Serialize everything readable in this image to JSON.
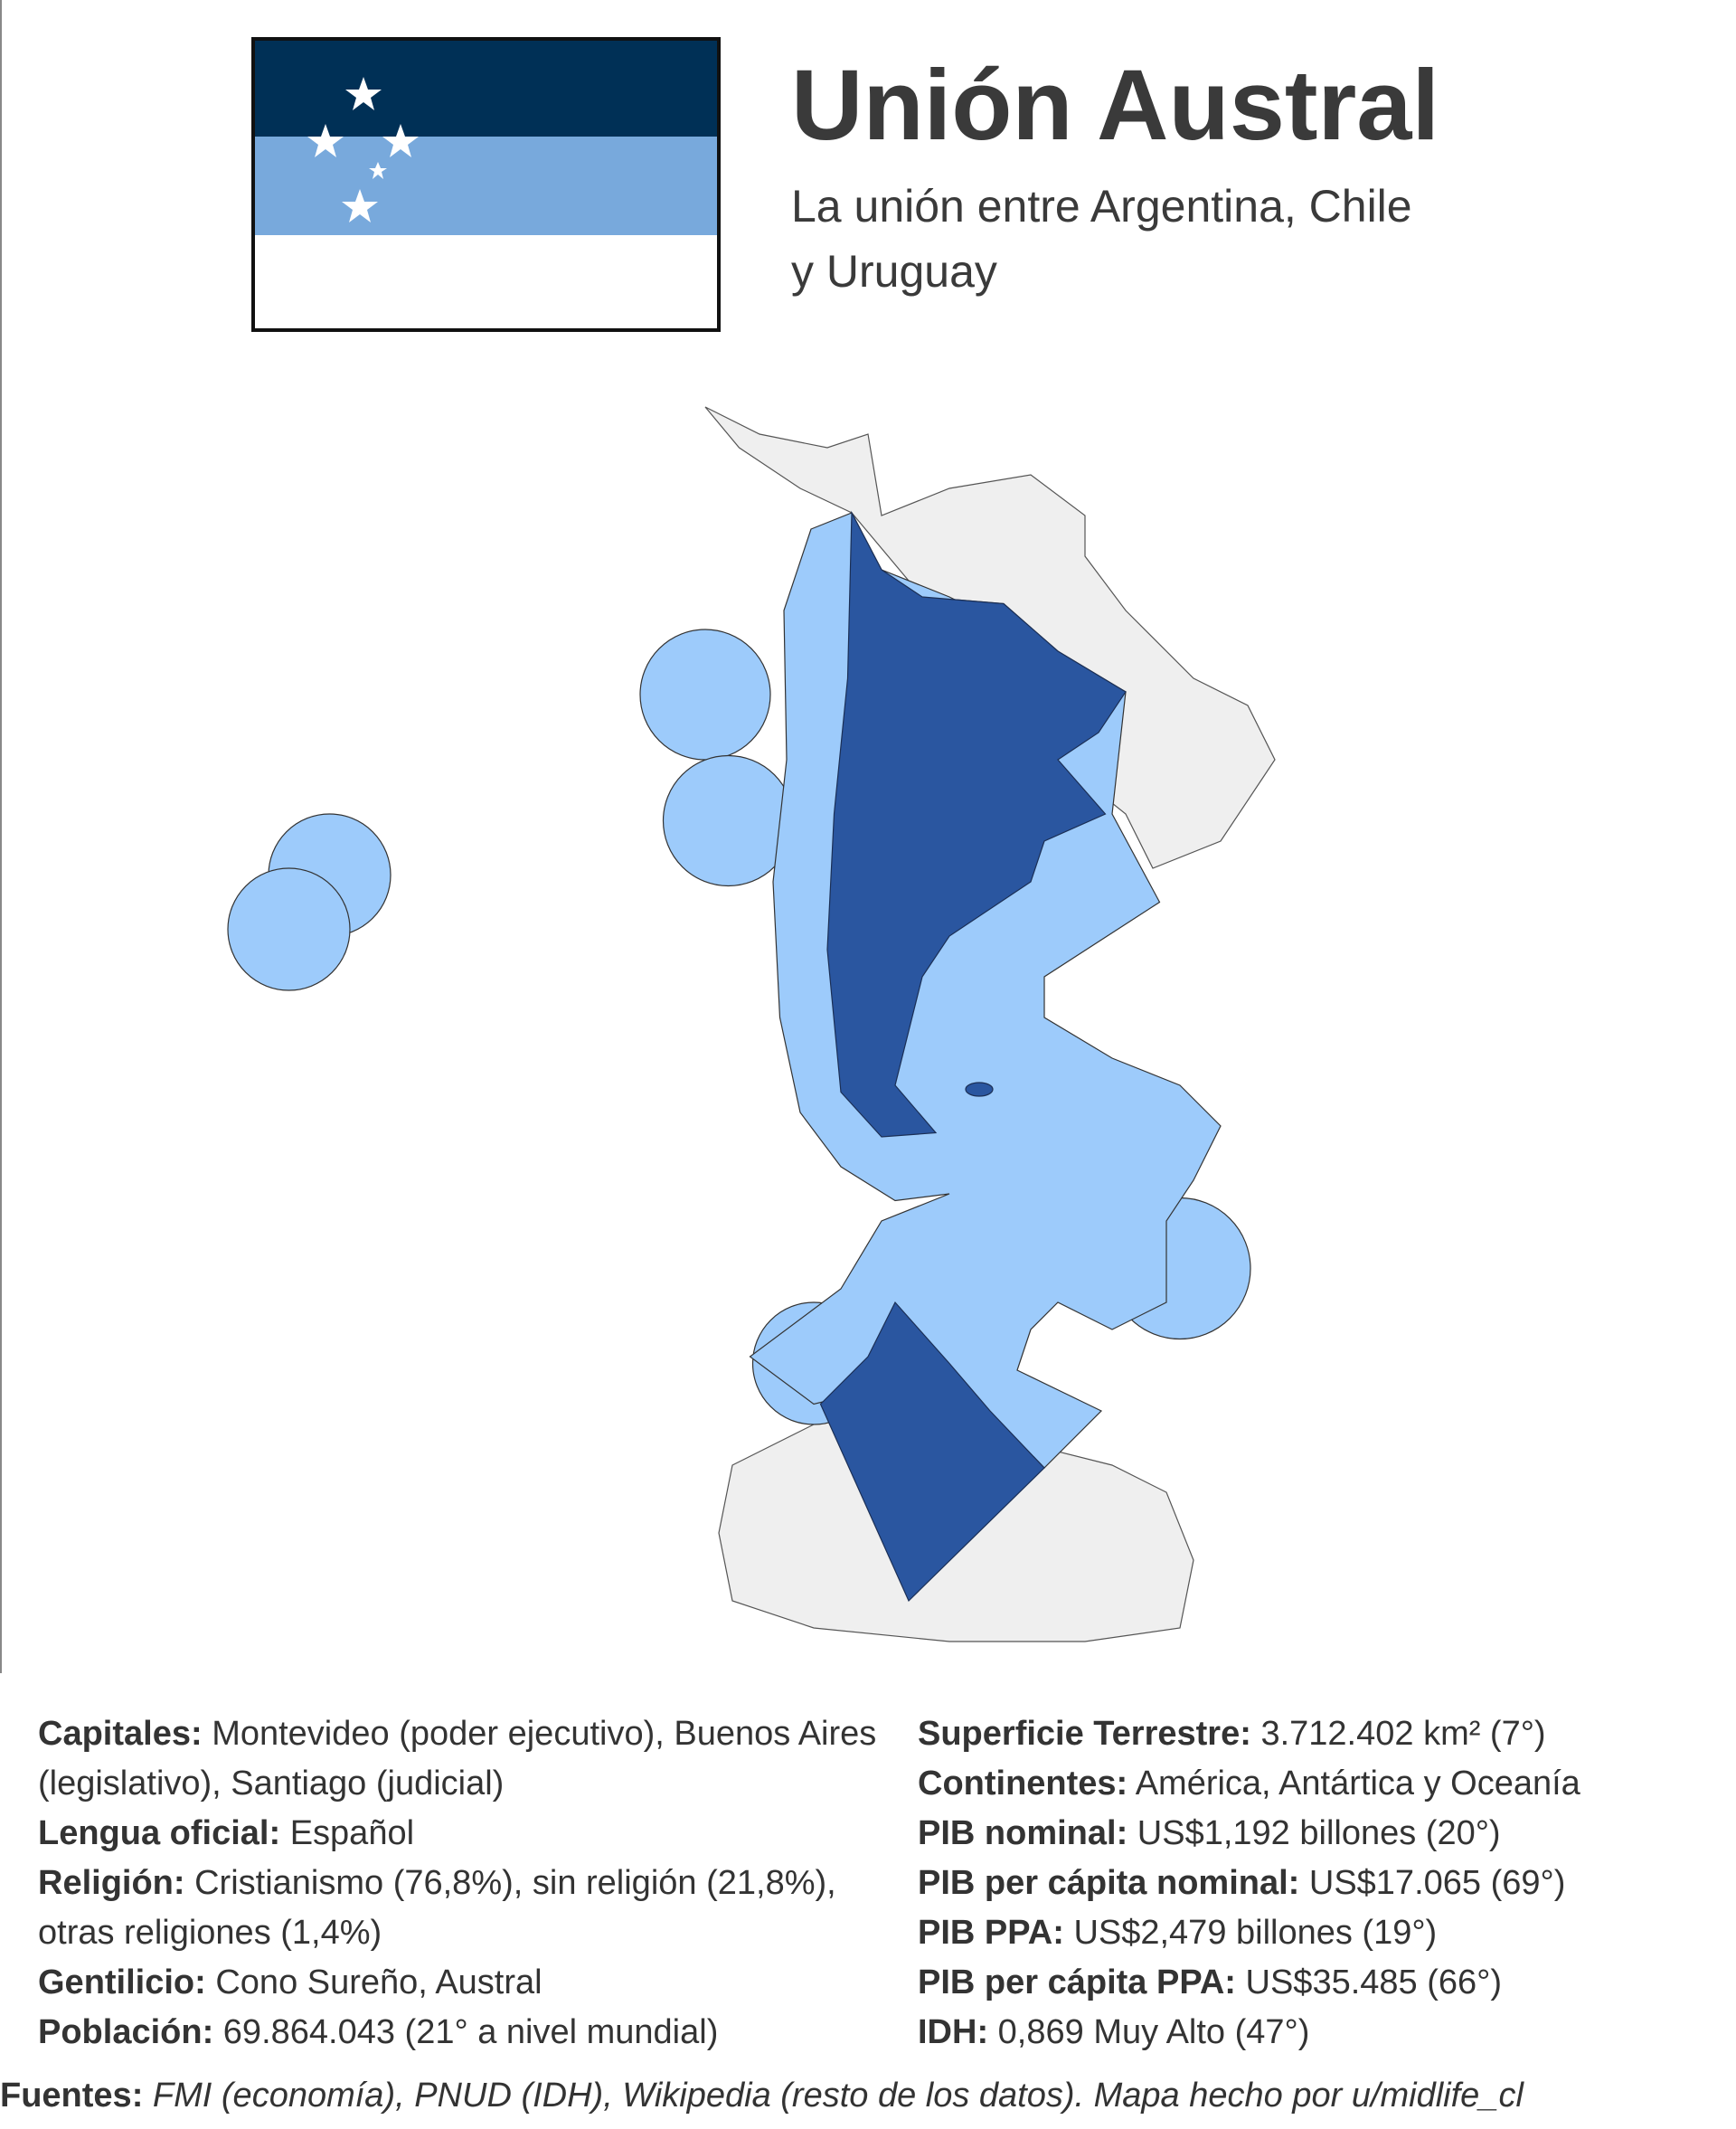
{
  "header": {
    "title": "Unión Austral",
    "subtitle_lines": [
      "La unión entre Argentina, Chile",
      "y Uruguay"
    ]
  },
  "facts_left": [
    {
      "label": "Capitales:",
      "value": "Montevideo (poder ejecutivo), Buenos Aires (legislativo), Santiago (judicial)"
    },
    {
      "label": "Lengua oficial:",
      "value": "Español"
    },
    {
      "label": "Religión:",
      "value": "Cristianismo (76,8%), sin religión (21,8%), otras religiones (1,4%)"
    },
    {
      "label": "Gentilicio:",
      "value": "Cono Sureño, Austral"
    },
    {
      "label": "Población:",
      "value": "69.864.043 (21° a nivel mundial)"
    }
  ],
  "facts_right": [
    {
      "label": "Superficie Terrestre:",
      "value": "3.712.402 km² (7°)"
    },
    {
      "label": "Continentes:",
      "value": "América, Antártica y Oceanía"
    },
    {
      "label": "PIB nominal:",
      "value": "US$1,192 billones (20°)"
    },
    {
      "label": "PIB per cápita nominal:",
      "value": "US$17.065 (69°)"
    },
    {
      "label": "PIB PPA:",
      "value": "US$2,479 billones (19°)"
    },
    {
      "label": "PIB per cápita PPA:",
      "value": "US$35.485 (66°)"
    },
    {
      "label": "IDH:",
      "value": "0,869 Muy Alto (47°)"
    }
  ],
  "sources": {
    "label": "Fuentes:",
    "text": "FMI (economía), PNUD (IDH), Wikipedia (resto de los datos). Mapa hecho por u/midlife_cl"
  }
}
